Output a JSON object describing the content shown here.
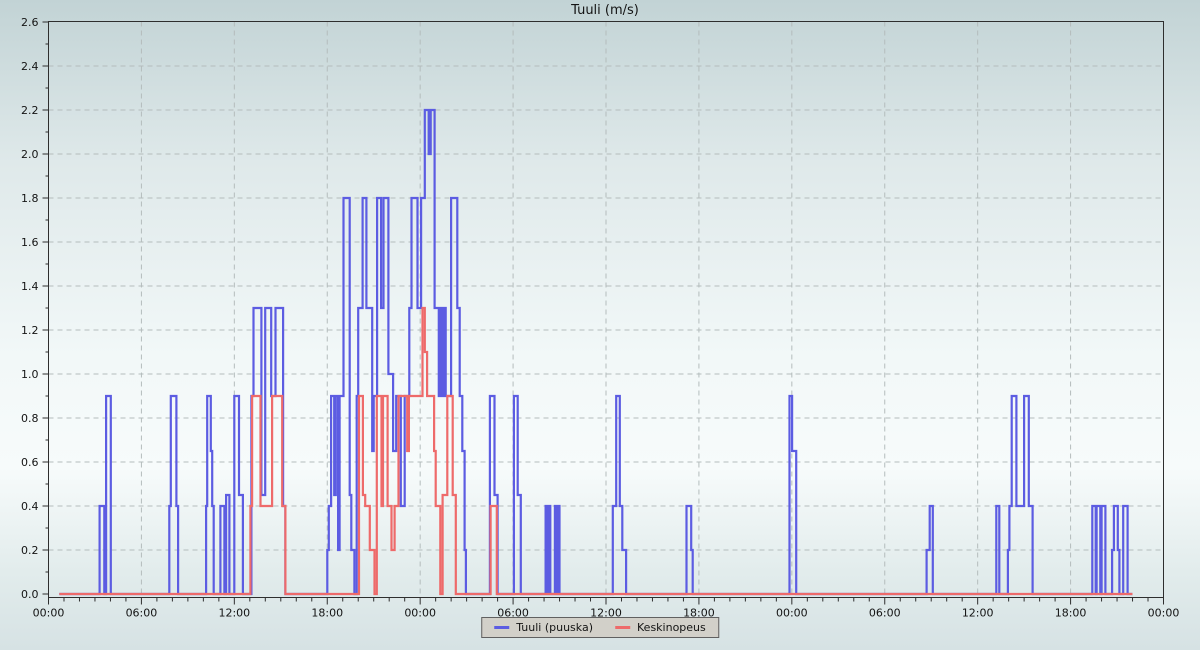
{
  "page": {
    "title": "Tuuli (m/s)"
  },
  "legend": {
    "items": [
      {
        "label": "Tuuli (puuska)",
        "color": "#5c5ce2"
      },
      {
        "label": "Keskinopeus",
        "color": "#ee6a6a"
      }
    ]
  },
  "chart_data": {
    "type": "line",
    "subtype": "step",
    "title": "Tuuli (m/s)",
    "xlabel": "",
    "ylabel": "",
    "grid": true,
    "legend_position": "bottom-center",
    "y_axis": {
      "min": 0.0,
      "max": 2.6,
      "major_step": 0.2,
      "minor_step": 0.1,
      "tick_labels": [
        "0.0",
        "0.2",
        "0.4",
        "0.6",
        "0.8",
        "1.0",
        "1.2",
        "1.4",
        "1.6",
        "1.8",
        "2.0",
        "2.2",
        "2.4",
        "2.6"
      ]
    },
    "x_axis": {
      "span_hours": 72,
      "major_step_hours": 6,
      "minor_step_hours": 1,
      "tick_labels": [
        "00:00",
        "06:00",
        "12:00",
        "18:00",
        "00:00",
        "06:00",
        "12:00",
        "18:00",
        "00:00",
        "06:00",
        "12:00",
        "18:00",
        "00:00"
      ]
    },
    "data_start_hour": 0.7,
    "data_end_hour": 70.0,
    "series": [
      {
        "name": "Tuuli (puuska)",
        "color": "#5c5ce2",
        "unit": "m/s",
        "points": [
          [
            0.7,
            0
          ],
          [
            3.3,
            0.4
          ],
          [
            3.6,
            0
          ],
          [
            3.72,
            0.9
          ],
          [
            4.02,
            0
          ],
          [
            7.8,
            0.4
          ],
          [
            7.9,
            0.9
          ],
          [
            8.26,
            0.4
          ],
          [
            8.37,
            0
          ],
          [
            10.18,
            0.4
          ],
          [
            10.25,
            0.9
          ],
          [
            10.48,
            0.65
          ],
          [
            10.57,
            0.4
          ],
          [
            10.67,
            0
          ],
          [
            11.1,
            0.4
          ],
          [
            11.36,
            0
          ],
          [
            11.47,
            0.45
          ],
          [
            11.68,
            0
          ],
          [
            12.0,
            0.9
          ],
          [
            12.3,
            0.45
          ],
          [
            12.55,
            0
          ],
          [
            13.1,
            0.9
          ],
          [
            13.24,
            1.3
          ],
          [
            13.75,
            0.45
          ],
          [
            13.99,
            1.3
          ],
          [
            14.38,
            0.9
          ],
          [
            14.66,
            1.3
          ],
          [
            15.15,
            0.4
          ],
          [
            15.3,
            0
          ],
          [
            18.0,
            0.2
          ],
          [
            18.1,
            0.4
          ],
          [
            18.25,
            0.9
          ],
          [
            18.45,
            0.45
          ],
          [
            18.55,
            0.9
          ],
          [
            18.7,
            0.2
          ],
          [
            18.8,
            0.9
          ],
          [
            19.05,
            1.8
          ],
          [
            19.45,
            0.45
          ],
          [
            19.55,
            0.2
          ],
          [
            19.75,
            0
          ],
          [
            19.9,
            0.9
          ],
          [
            20.0,
            1.3
          ],
          [
            20.28,
            1.8
          ],
          [
            20.53,
            1.3
          ],
          [
            20.9,
            0.65
          ],
          [
            21.0,
            0.9
          ],
          [
            21.22,
            1.8
          ],
          [
            21.48,
            1.3
          ],
          [
            21.63,
            1.8
          ],
          [
            21.95,
            1.0
          ],
          [
            22.25,
            0.65
          ],
          [
            22.45,
            0.9
          ],
          [
            22.75,
            0.4
          ],
          [
            23.0,
            0.9
          ],
          [
            23.3,
            1.3
          ],
          [
            23.44,
            1.8
          ],
          [
            23.83,
            1.3
          ],
          [
            24.06,
            1.8
          ],
          [
            24.3,
            2.2
          ],
          [
            24.55,
            2.0
          ],
          [
            24.68,
            2.2
          ],
          [
            24.93,
            1.3
          ],
          [
            25.2,
            0.9
          ],
          [
            25.3,
            1.3
          ],
          [
            25.42,
            0.9
          ],
          [
            25.52,
            1.3
          ],
          [
            25.65,
            0.9
          ],
          [
            26.0,
            1.8
          ],
          [
            26.4,
            1.3
          ],
          [
            26.55,
            0.9
          ],
          [
            26.72,
            0.65
          ],
          [
            26.87,
            0.2
          ],
          [
            26.95,
            0
          ],
          [
            28.5,
            0.9
          ],
          [
            28.8,
            0.45
          ],
          [
            29.0,
            0
          ],
          [
            30.05,
            0.9
          ],
          [
            30.3,
            0.45
          ],
          [
            30.5,
            0
          ],
          [
            32.1,
            0.4
          ],
          [
            32.22,
            0
          ],
          [
            32.27,
            0.4
          ],
          [
            32.4,
            0
          ],
          [
            32.7,
            0.4
          ],
          [
            32.82,
            0
          ],
          [
            32.87,
            0.4
          ],
          [
            33.0,
            0
          ],
          [
            36.44,
            0.4
          ],
          [
            36.66,
            0.9
          ],
          [
            36.89,
            0.4
          ],
          [
            37.05,
            0.2
          ],
          [
            37.3,
            0
          ],
          [
            41.2,
            0.4
          ],
          [
            41.5,
            0.2
          ],
          [
            41.6,
            0
          ],
          [
            47.85,
            0.9
          ],
          [
            48.02,
            0.65
          ],
          [
            48.28,
            0
          ],
          [
            56.7,
            0.2
          ],
          [
            56.9,
            0.4
          ],
          [
            57.1,
            0
          ],
          [
            61.2,
            0.4
          ],
          [
            61.4,
            0
          ],
          [
            61.95,
            0.2
          ],
          [
            62.05,
            0.4
          ],
          [
            62.2,
            0.9
          ],
          [
            62.5,
            0.4
          ],
          [
            63.0,
            0.9
          ],
          [
            63.3,
            0.4
          ],
          [
            63.55,
            0
          ],
          [
            67.4,
            0.4
          ],
          [
            67.62,
            0
          ],
          [
            67.68,
            0.4
          ],
          [
            67.92,
            0
          ],
          [
            68.0,
            0.4
          ],
          [
            68.25,
            0
          ],
          [
            68.68,
            0.2
          ],
          [
            68.8,
            0.4
          ],
          [
            69.05,
            0.2
          ],
          [
            69.15,
            0
          ],
          [
            69.4,
            0.4
          ],
          [
            69.68,
            0
          ],
          [
            70.0,
            0
          ]
        ]
      },
      {
        "name": "Keskinopeus",
        "color": "#ee6a6a",
        "unit": "m/s",
        "points": [
          [
            0.7,
            0
          ],
          [
            13.04,
            0.4
          ],
          [
            13.15,
            0.9
          ],
          [
            13.69,
            0.4
          ],
          [
            14.44,
            0.9
          ],
          [
            15.09,
            0.4
          ],
          [
            15.3,
            0
          ],
          [
            20.05,
            0.9
          ],
          [
            20.3,
            0.45
          ],
          [
            20.45,
            0.4
          ],
          [
            20.75,
            0.2
          ],
          [
            21.05,
            0
          ],
          [
            21.2,
            0.9
          ],
          [
            21.5,
            0.4
          ],
          [
            21.6,
            0.9
          ],
          [
            21.9,
            0.4
          ],
          [
            22.15,
            0.2
          ],
          [
            22.35,
            0.4
          ],
          [
            22.6,
            0.9
          ],
          [
            23.16,
            0.65
          ],
          [
            23.27,
            0.9
          ],
          [
            24.15,
            1.3
          ],
          [
            24.3,
            1.1
          ],
          [
            24.45,
            0.9
          ],
          [
            24.9,
            0.65
          ],
          [
            25.0,
            0.4
          ],
          [
            25.3,
            0
          ],
          [
            25.45,
            0.45
          ],
          [
            25.75,
            0.9
          ],
          [
            26.1,
            0.45
          ],
          [
            26.3,
            0
          ],
          [
            28.55,
            0.4
          ],
          [
            28.95,
            0
          ],
          [
            70.0,
            0
          ]
        ]
      }
    ]
  },
  "style": {
    "grid_color": "#b4bcbc",
    "frame_color": "#2e2e2e",
    "tick_color": "#2e2e2e",
    "label_color": "#141414",
    "legend_bg": "#d2d0c9",
    "legend_border": "#606060"
  }
}
